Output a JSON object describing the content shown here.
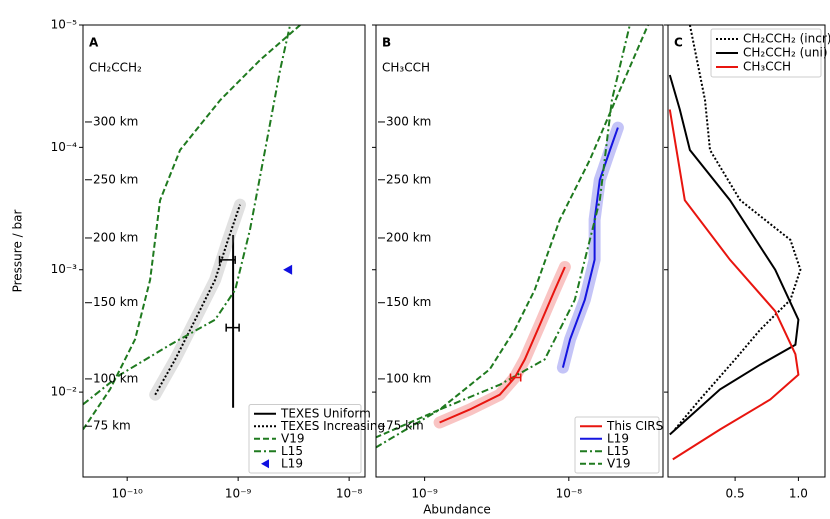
{
  "chart_data": [
    {
      "type": "line",
      "panel": "A",
      "subtitle": "CH₂CCH₂",
      "ylabel": "Pressure / bar",
      "xlog": true,
      "ylog": true,
      "xlim": [
        4e-11,
        1.39e-08
      ],
      "ylim": [
        1e-05,
        0.0494
      ],
      "xticks": [
        {
          "value": 1e-10,
          "label": "10⁻¹⁰"
        },
        {
          "value": 1e-09,
          "label": "10⁻⁹"
        },
        {
          "value": 1e-08,
          "label": "10⁻⁸"
        }
      ],
      "yticks": [
        {
          "value": 1e-05,
          "label": "10⁻⁵"
        },
        {
          "value": 0.0001,
          "label": "10⁻⁴"
        },
        {
          "value": 0.001,
          "label": "10⁻³"
        },
        {
          "value": 0.01,
          "label": "10⁻²"
        }
      ],
      "altitudes": [
        {
          "value": 6.2e-05,
          "label": "300 km"
        },
        {
          "value": 0.000184,
          "label": "250 km"
        },
        {
          "value": 0.00055,
          "label": "200 km"
        },
        {
          "value": 0.00186,
          "label": "150 km"
        },
        {
          "value": 0.0078,
          "label": "100 km"
        },
        {
          "value": 0.019,
          "label": "75 km"
        }
      ],
      "legend": "lower right",
      "series": [
        {
          "name": "TEXES Uniform",
          "color": "#000000",
          "style": "solid",
          "x": [
            9e-10,
            9e-10
          ],
          "values": [
            0.00052,
            0.0134
          ]
        },
        {
          "name": "TEXES Increasing",
          "color": "#000000",
          "style": "dotted",
          "band": true,
          "x": [
            1.79e-10,
            2.71e-10,
            4.1e-10,
            6.2e-10,
            8.1e-10,
            1.04e-09
          ],
          "values": [
            0.0105,
            0.0054,
            0.00256,
            0.00121,
            0.00057,
            0.000294
          ]
        },
        {
          "name": "V19",
          "color": "#1f7a1f",
          "style": "dashed",
          "x": [
            4e-11,
            7e-11,
            1.18e-10,
            1.61e-10,
            1.98e-10,
            3e-10,
            6.9e-10,
            1.58e-09,
            3.62e-09
          ],
          "values": [
            0.0202,
            0.0095,
            0.0037,
            0.00121,
            0.00027,
            0.000105,
            4.1e-05,
            1.93e-05,
            1e-05
          ]
        },
        {
          "name": "L15",
          "color": "#1f7a1f",
          "style": "dashdot",
          "x": [
            4e-11,
            8.65e-11,
            2.44e-10,
            6.2e-10,
            9.4e-10,
            1.28e-09,
            1.75e-09,
            2.39e-09,
            2.94e-09
          ],
          "values": [
            0.0126,
            0.0072,
            0.0041,
            0.00256,
            0.00146,
            0.00047,
            0.000105,
            2.33e-05,
            1e-05
          ]
        },
        {
          "name": "L19",
          "color": "#1010e0",
          "marker": "triangle",
          "x": [
            2.82e-09
          ],
          "values": [
            0.001
          ]
        }
      ],
      "errorbars": {
        "color": "#000000",
        "x": [
          8.1e-10,
          9e-10
        ],
        "y": [
          0.00083,
          0.00297
        ],
        "xerr": [
          1.3e-10,
          1.2e-10
        ]
      }
    },
    {
      "type": "line",
      "panel": "B",
      "subtitle": "CH₃CCH",
      "xlabel": "Abundance",
      "xlog": true,
      "ylog": true,
      "xlim": [
        4.6e-10,
        4.5e-08
      ],
      "ylim": [
        1e-05,
        0.0494
      ],
      "xticks": [
        {
          "value": 1e-09,
          "label": "10⁻⁹"
        },
        {
          "value": 1e-08,
          "label": "10⁻⁸"
        }
      ],
      "legend": "lower right",
      "series": [
        {
          "name": "This CIRS",
          "color": "#e8150f",
          "style": "solid",
          "band": true,
          "x": [
            1.27e-09,
            2.05e-09,
            3.32e-09,
            4.22e-09,
            4.95e-09,
            6.3e-09,
            8e-09,
            9.4e-09
          ],
          "values": [
            0.0177,
            0.0139,
            0.0105,
            0.0076,
            0.0054,
            0.00281,
            0.00146,
            0.00095
          ]
        },
        {
          "name": "L19",
          "color": "#1515e0",
          "style": "solid",
          "band": true,
          "x": [
            9.1e-09,
            1.02e-08,
            1.29e-08,
            1.51e-08,
            1.51e-08,
            1.64e-08,
            1.93e-08,
            2.19e-08
          ],
          "values": [
            0.0063,
            0.0037,
            0.00176,
            0.00083,
            0.00039,
            0.000184,
            0.000105,
            6.9e-05
          ]
        },
        {
          "name": "L15",
          "color": "#1f7a1f",
          "style": "dashdot",
          "x": [
            4.57e-10,
            1.27e-09,
            3.32e-09,
            6.8e-09,
            1.1e-08,
            1.64e-08,
            1.99e-08,
            2.65e-08
          ],
          "values": [
            0.0284,
            0.0139,
            0.0087,
            0.0054,
            0.00176,
            0.00027,
            4.1e-05,
            1e-05
          ]
        },
        {
          "name": "V19",
          "color": "#1f7a1f",
          "style": "dashed",
          "x": [
            4.57e-10,
            1.27e-09,
            2.83e-09,
            4.22e-09,
            5.8e-09,
            8.66e-09,
            1.4e-08,
            2.26e-08,
            3.54e-08
          ],
          "values": [
            0.0235,
            0.0139,
            0.0065,
            0.00309,
            0.00146,
            0.00039,
            0.000126,
            3.4e-05,
            1e-05
          ]
        }
      ],
      "errorbars": {
        "color": "#e8150f",
        "x": [
          4.29e-09
        ],
        "y": [
          0.0076
        ],
        "xerr": [
          3.5e-10
        ]
      }
    },
    {
      "type": "line",
      "panel": "C",
      "xlog": false,
      "ylog": true,
      "xlim": [
        -0.03,
        1.21
      ],
      "ylim": [
        1e-05,
        0.0494
      ],
      "xticks": [
        0.5,
        {
          "value": 1,
          "label": "1.0"
        }
      ],
      "legend": "upper right",
      "series": [
        {
          "name": "CH₂CCH₂ (incr)",
          "color": "#000000",
          "style": "dotted",
          "x": [
            0.143,
            0.262,
            0.302,
            0.54,
            0.937,
            1.016,
            0.937,
            0.698,
            0.5,
            0.222,
            0.024
          ],
          "values": [
            1e-05,
            4.1e-05,
            0.000105,
            0.00027,
            0.00057,
            0.001,
            0.00176,
            0.00309,
            0.0054,
            0.0115,
            0.0202
          ]
        },
        {
          "name": "CH₂CCH₂ (uni)",
          "color": "#000000",
          "style": "solid",
          "x": [
            -0.016,
            0.063,
            0.143,
            0.46,
            0.817,
            1.0,
            0.976,
            0.698,
            0.381,
            -0.016
          ],
          "values": [
            2.56e-05,
            4.9e-05,
            0.000105,
            0.00027,
            0.001,
            0.00256,
            0.0041,
            0.00597,
            0.0095,
            0.0222
          ]
        },
        {
          "name": "CH₃CCH",
          "color": "#e8150f",
          "style": "solid",
          "x": [
            -0.016,
            0.103,
            0.46,
            0.817,
            0.976,
            1.0,
            0.778,
            0.381,
            0.008
          ],
          "values": [
            4.9e-05,
            0.00027,
            0.00083,
            0.00218,
            0.0049,
            0.0072,
            0.0115,
            0.0202,
            0.0355
          ]
        }
      ]
    }
  ]
}
